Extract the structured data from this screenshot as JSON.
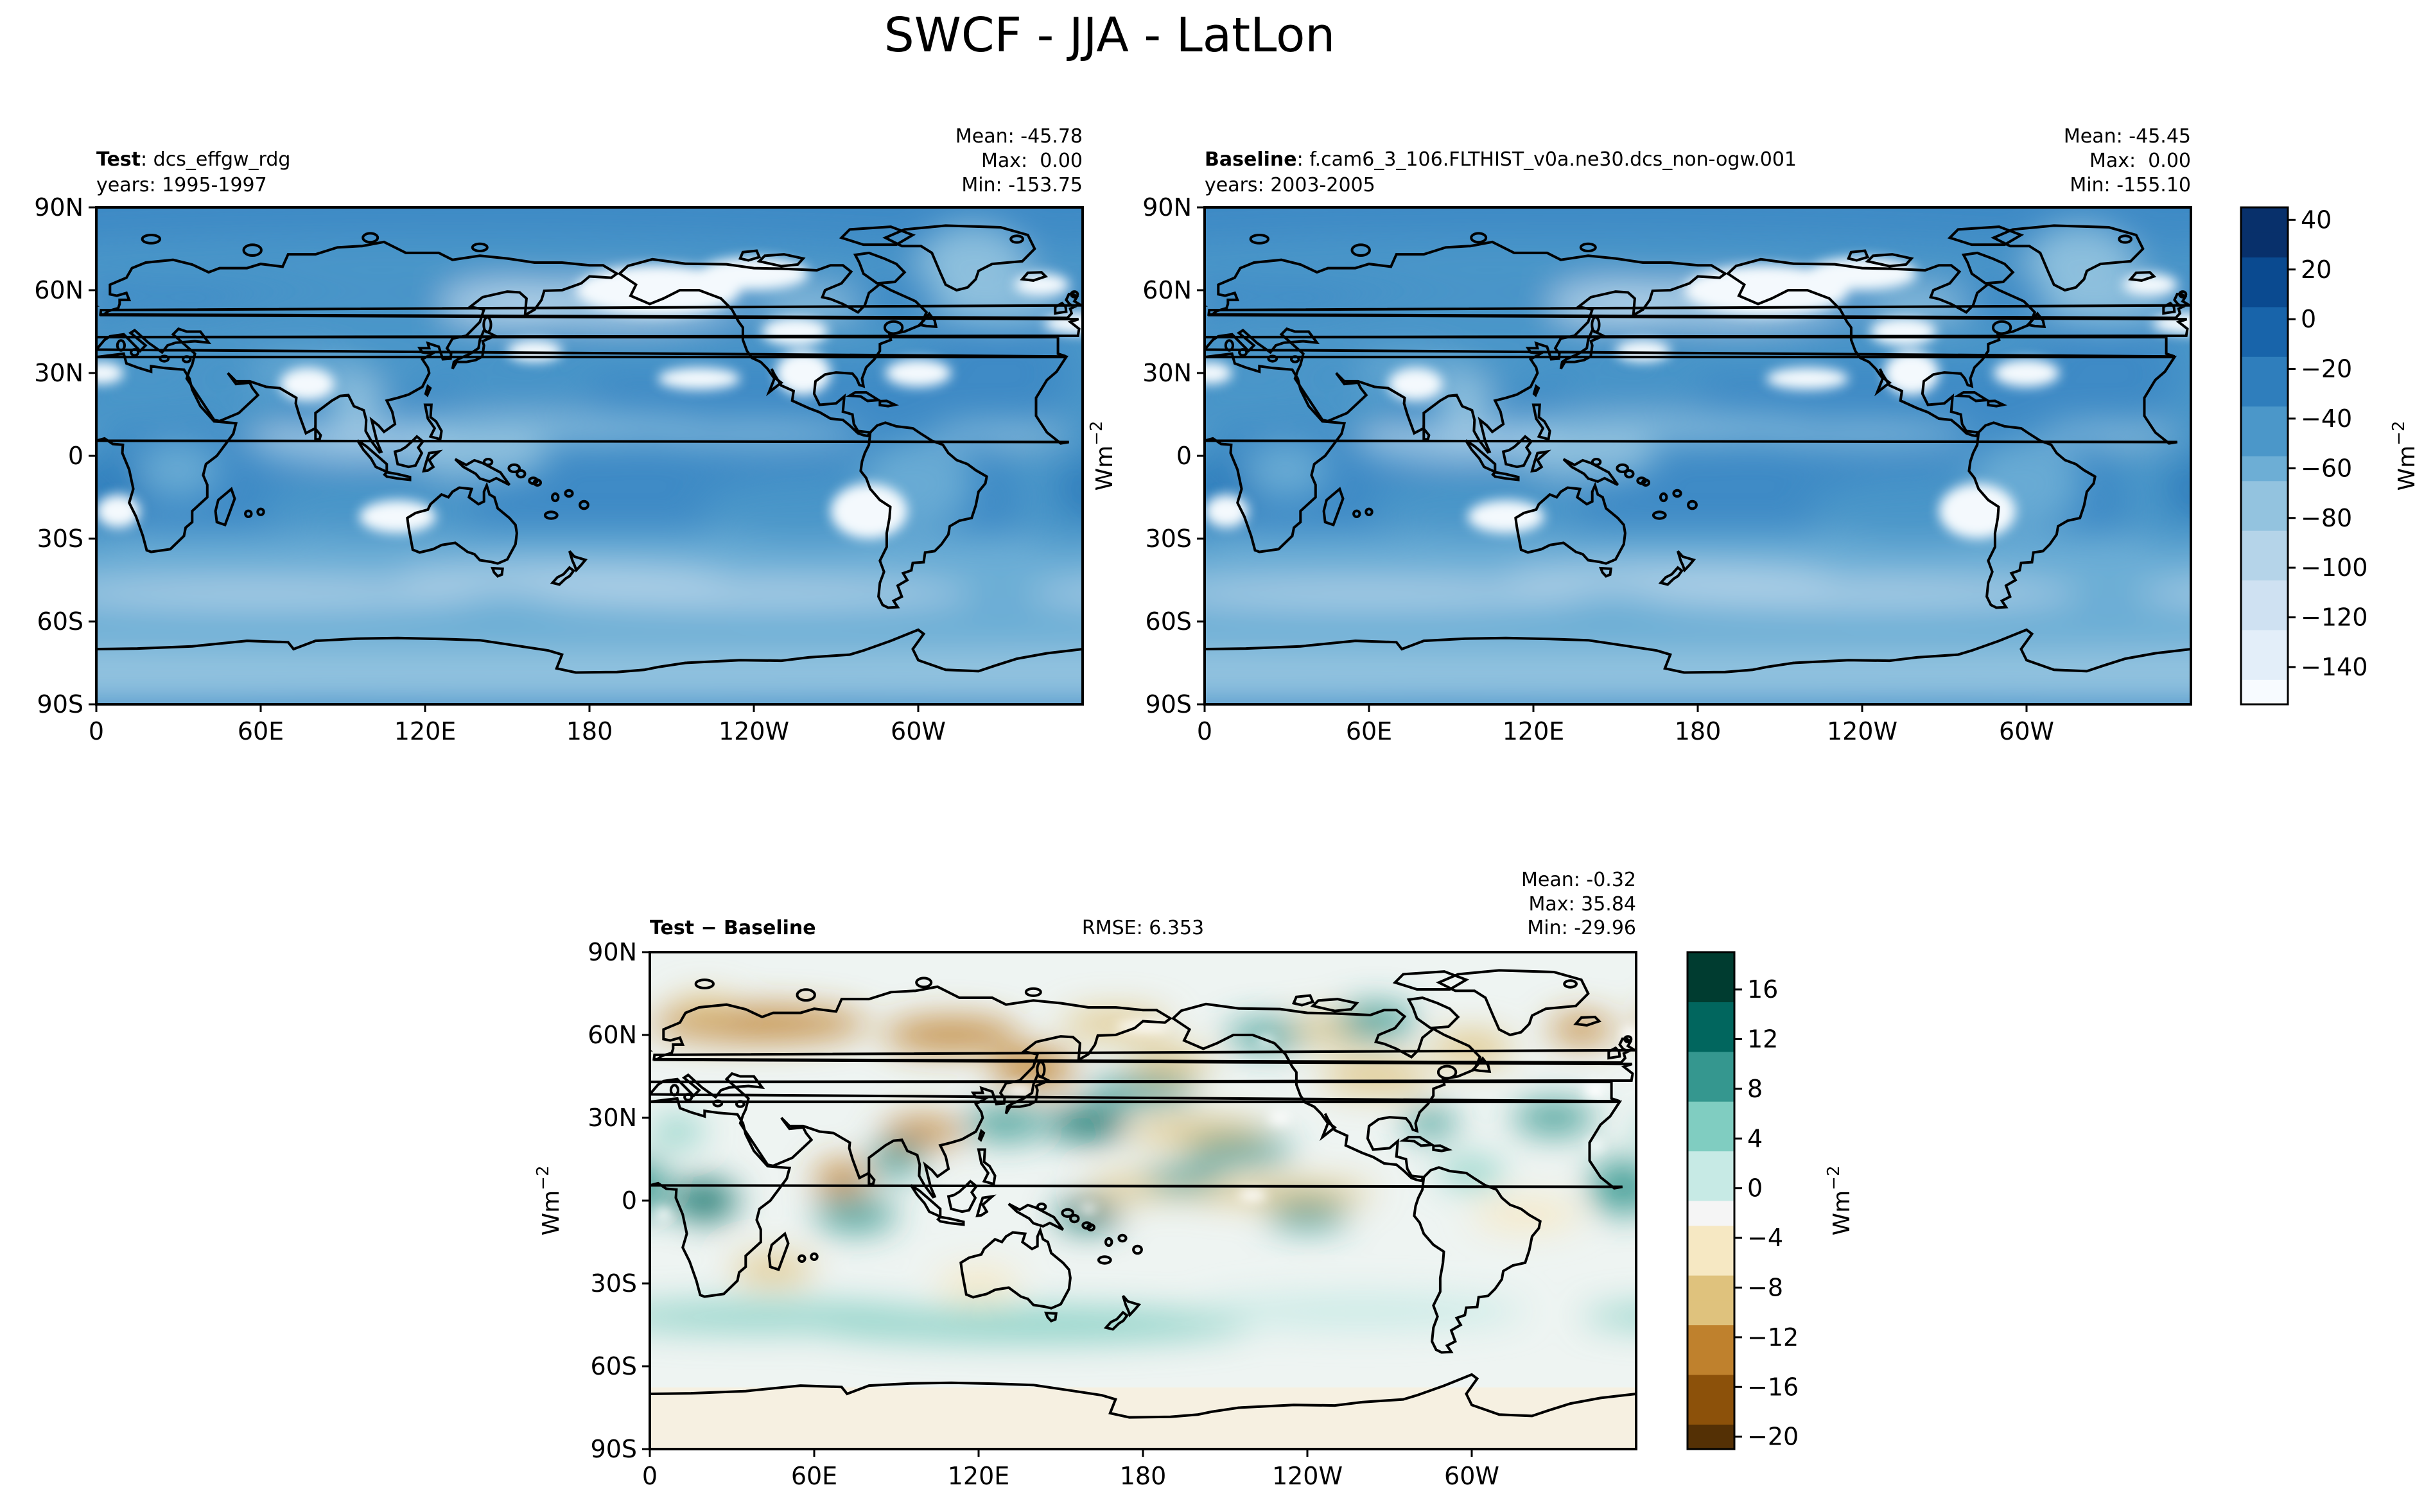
{
  "figure": {
    "title": "SWCF - JJA - LatLon"
  },
  "panels": {
    "test": {
      "label_bold": "Test",
      "label_rest": ": dcs_effgw_rdg",
      "years": "years: 1995-1997",
      "stats": [
        "Mean: -45.78",
        "Max:  0.00",
        "Min: -153.75"
      ]
    },
    "baseline": {
      "label_bold": "Baseline",
      "label_rest": ": f.cam6_3_106.FLTHIST_v0a.ne30.dcs_non-ogw.001",
      "years": "years: 2003-2005",
      "stats": [
        "Mean: -45.45",
        "Max:  0.00",
        "Min: -155.10"
      ]
    },
    "diff": {
      "label_bold": "Test − Baseline",
      "rmse": "RMSE: 6.353",
      "stats": [
        "Mean: -0.32",
        "Max: 35.84",
        "Min: -29.96"
      ]
    }
  },
  "units_label": "Wm",
  "units_exp": "−2",
  "colors": {
    "blues": [
      "#f7fbff",
      "#e3eef9",
      "#cfe1f2",
      "#b5d4e9",
      "#93c3df",
      "#6daed5",
      "#4b97c9",
      "#2f7ebc",
      "#1864aa",
      "#0a4a90",
      "#08306b"
    ],
    "brbg": [
      "#543005",
      "#8c510a",
      "#bf812d",
      "#dfc27d",
      "#f6e8c3",
      "#f5f5f5",
      "#c7eae5",
      "#80cdc1",
      "#35978f",
      "#01665e",
      "#003c30"
    ]
  },
  "chart_data": [
    {
      "type": "heatmap",
      "name": "test",
      "xlabel": "",
      "ylabel": "",
      "x_ticks": [
        "0",
        "60E",
        "120E",
        "180",
        "120W",
        "60W"
      ],
      "y_ticks": [
        "90N",
        "60N",
        "30N",
        "0",
        "30S",
        "60S",
        "90S"
      ],
      "xlim": [
        0,
        360
      ],
      "ylim": [
        -90,
        90
      ],
      "colormap": "Blues",
      "vmin": -150,
      "vmax": 40,
      "colorbar_ticks": [
        "40",
        "20",
        "0",
        "−20",
        "−40",
        "−60",
        "−80",
        "−100",
        "−120",
        "−140"
      ],
      "colorbar_levels": [
        -150,
        -140,
        -130,
        -120,
        -110,
        -100,
        -90,
        -80,
        -70,
        -60,
        -50,
        -40,
        -30,
        -20,
        -10,
        0,
        10,
        20,
        30,
        40
      ],
      "mean": -45.78,
      "max": 0.0,
      "min": -153.75
    },
    {
      "type": "heatmap",
      "name": "baseline",
      "x_ticks": [
        "0",
        "60E",
        "120E",
        "180",
        "120W",
        "60W"
      ],
      "y_ticks": [
        "90N",
        "60N",
        "30N",
        "0",
        "30S",
        "60S",
        "90S"
      ],
      "xlim": [
        0,
        360
      ],
      "ylim": [
        -90,
        90
      ],
      "colormap": "Blues",
      "vmin": -150,
      "vmax": 40,
      "mean": -45.45,
      "max": 0.0,
      "min": -155.1
    },
    {
      "type": "heatmap",
      "name": "difference",
      "x_ticks": [
        "0",
        "60E",
        "120E",
        "180",
        "120W",
        "60W"
      ],
      "y_ticks": [
        "90N",
        "60N",
        "30N",
        "0",
        "30S",
        "60S",
        "90S"
      ],
      "xlim": [
        0,
        360
      ],
      "ylim": [
        -90,
        90
      ],
      "colormap": "BrBG",
      "vmin": -20,
      "vmax": 18,
      "colorbar_ticks": [
        "16",
        "12",
        "8",
        "4",
        "0",
        "−4",
        "−8",
        "−12",
        "−16",
        "−20"
      ],
      "colorbar_levels": [
        -20,
        -18,
        -16,
        -14,
        -12,
        -10,
        -8,
        -6,
        -4,
        -2,
        0,
        2,
        4,
        6,
        8,
        10,
        12,
        14,
        16,
        18
      ],
      "mean": -0.32,
      "max": 35.84,
      "min": -29.96,
      "rmse": 6.353
    }
  ]
}
